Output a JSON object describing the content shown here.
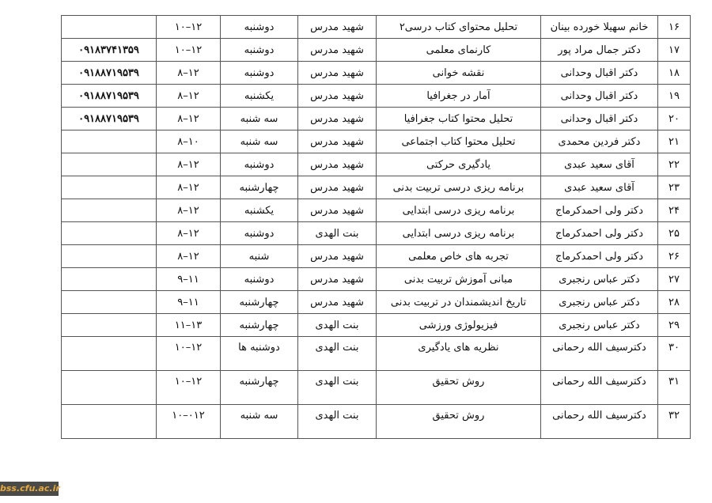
{
  "table": {
    "rows": [
      {
        "num": "۱۶",
        "name": "خانم سهیلا خورده بینان",
        "course": "تحلیل محتوای کتاب درسی۲",
        "location": "شهید مدرس",
        "day": "دوشنبه",
        "time": "۱۰–۱۲",
        "phone": ""
      },
      {
        "num": "۱۷",
        "name": "دکتر جمال مراد پور",
        "course": "کارنمای معلمی",
        "location": "شهید مدرس",
        "day": "دوشنبه",
        "time": "۱۰–۱۲",
        "phone": "۰۹۱۸۳۷۴۱۳۵۹"
      },
      {
        "num": "۱۸",
        "name": "دکتر اقبال وحدانی",
        "course": "نقشه خوانی",
        "location": "شهید مدرس",
        "day": "دوشنبه",
        "time": "۸–۱۲",
        "phone": "۰۹۱۸۸۷۱۹۵۳۹"
      },
      {
        "num": "۱۹",
        "name": "دکتر اقبال وحدانی",
        "course": "آمار در جغرافیا",
        "location": "شهید مدرس",
        "day": "یکشنبه",
        "time": "۸–۱۲",
        "phone": "۰۹۱۸۸۷۱۹۵۳۹"
      },
      {
        "num": "۲۰",
        "name": "دکتر اقبال وحدانی",
        "course": "تحلیل محتوا کتاب  جغرافیا",
        "location": "شهید مدرس",
        "day": "سه شنبه",
        "time": "۸–۱۲",
        "phone": "۰۹۱۸۸۷۱۹۵۳۹"
      },
      {
        "num": "۲۱",
        "name": "دکتر فردین محمدی",
        "course": "تحلیل محتوا کتاب  اجتماعی",
        "location": "شهید مدرس",
        "day": "سه شنبه",
        "time": "۸–۱۰",
        "phone": ""
      },
      {
        "num": "۲۲",
        "name": "آقای سعید عبدی",
        "course": "یادگیری حرکتی",
        "location": "شهید مدرس",
        "day": "دوشنبه",
        "time": "۸–۱۲",
        "phone": ""
      },
      {
        "num": "۲۳",
        "name": "آقای سعید عبدی",
        "course": "برنامه ریزی درسی تربیت بدنی",
        "location": "شهید مدرس",
        "day": "چهارشنبه",
        "time": "۸–۱۲",
        "phone": ""
      },
      {
        "num": "۲۴",
        "name": "دکتر ولی احمدکرماج",
        "course": "برنامه ریزی درسی ابتدایی",
        "location": "شهید مدرس",
        "day": "یکشنبه",
        "time": "۸–۱۲",
        "phone": ""
      },
      {
        "num": "۲۵",
        "name": "دکتر ولی احمدکرماج",
        "course": "برنامه ریزی درسی ابتدایی",
        "location": "بنت الهدی",
        "day": "دوشنبه",
        "time": "۸–۱۲",
        "phone": ""
      },
      {
        "num": "۲۶",
        "name": "دکتر ولی احمدکرماج",
        "course": "تجربه های خاص معلمی",
        "location": "شهید مدرس",
        "day": "شنبه",
        "time": "۸–۱۲",
        "phone": ""
      },
      {
        "num": "۲۷",
        "name": "دکتر عباس رنجبری",
        "course": "مبانی آموزش تربیت بدنی",
        "location": "شهید مدرس",
        "day": "دوشنبه",
        "time": "۹–۱۱",
        "phone": ""
      },
      {
        "num": "۲۸",
        "name": "دکتر عباس رنجبری",
        "course": "تاریخ اندیشمندان در تربیت بدنی",
        "location": "شهید مدرس",
        "day": "چهارشنبه",
        "time": "۹–۱۱",
        "phone": ""
      },
      {
        "num": "۲۹",
        "name": "دکتر عباس رنجبری",
        "course": "فیزیولوژی ورزشی",
        "location": "بنت الهدی",
        "day": "چهارشنبه",
        "time": "۱۱–۱۳",
        "phone": ""
      },
      {
        "num": "۳۰",
        "name": "دکترسیف الله رحمانی",
        "course": "نظریه های یادگیری",
        "location": "بنت الهدی",
        "day": "دوشنبه ها",
        "time": "۱۰–۱۲",
        "phone": ""
      },
      {
        "num": "۳۱",
        "name": "دکترسیف الله رحمانی",
        "course": "روش تحقیق",
        "location": "بنت الهدی",
        "day": "چهارشنبه",
        "time": "۱۰–۱۲",
        "phone": ""
      },
      {
        "num": "۳۲",
        "name": "دکترسیف الله رحمانی",
        "course": "روش تحقیق",
        "location": "بنت الهدی",
        "day": "سه شنبه",
        "time": "۱۰–۰۱۲",
        "phone": ""
      }
    ]
  },
  "watermark": "bss.cfu.ac.ir"
}
